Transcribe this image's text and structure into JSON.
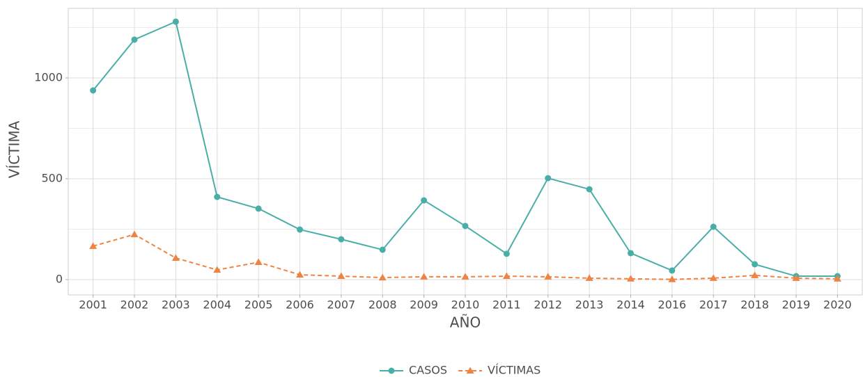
{
  "chart_data": {
    "type": "line",
    "xlabel": "AÑO",
    "ylabel": "VÍCTIMA",
    "categories": [
      "2001",
      "2002",
      "2003",
      "2004",
      "2005",
      "2006",
      "2007",
      "2008",
      "2009",
      "2010",
      "2011",
      "2012",
      "2013",
      "2014",
      "2016",
      "2017",
      "2018",
      "2019",
      "2020"
    ],
    "series": [
      {
        "name": "CASOS",
        "color": "#4aaea8",
        "marker": "circle",
        "line_style": "solid",
        "values": [
          938,
          1190,
          1279,
          410,
          352,
          248,
          200,
          148,
          393,
          266,
          128,
          503,
          448,
          131,
          45,
          262,
          76,
          17,
          17
        ]
      },
      {
        "name": "VÍCTIMAS",
        "color": "#ee8443",
        "marker": "triangle",
        "line_style": "dashed",
        "values": [
          166,
          224,
          107,
          48,
          86,
          24,
          17,
          10,
          14,
          14,
          17,
          14,
          7,
          4,
          1,
          7,
          21,
          7,
          4
        ]
      }
    ],
    "ylim": [
      -76,
      1345
    ],
    "yticks": [
      0,
      500,
      1000
    ],
    "minor_yticks": [
      250,
      750,
      1250
    ],
    "grid": true,
    "legend": "bottom"
  }
}
